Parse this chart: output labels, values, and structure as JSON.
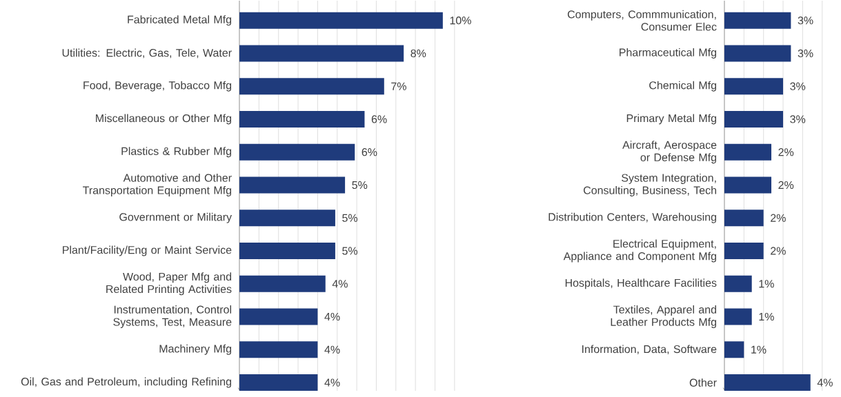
{
  "chart_data": [
    {
      "type": "bar",
      "orientation": "horizontal",
      "categories": [
        "Fabricated Metal Mfg",
        "Utilities: Electric, Gas, Tele, Water",
        "Food, Beverage, Tobacco Mfg",
        "Miscellaneous or Other Mfg",
        "Plastics & Rubber Mfg",
        "Automotive and Other Transportation Equipment Mfg",
        "Government or Military",
        "Plant/Facility/Eng or Maint Service",
        "Wood, Paper Mfg and Related Printing Activities",
        "Instrumentation, Control Systems, Test, Measure",
        "Machinery Mfg",
        "Oil, Gas and Petroleum, including Refining"
      ],
      "values": [
        10.4,
        8.4,
        7.4,
        6.4,
        5.9,
        5.4,
        4.9,
        4.9,
        4.4,
        4.0,
        4.0,
        4.0
      ],
      "value_labels": [
        "10%",
        "8%",
        "7%",
        "6%",
        "6%",
        "5%",
        "5%",
        "5%",
        "4%",
        "4%",
        "4%",
        "4%"
      ],
      "color": "#1f3b7c",
      "grid": "x",
      "tick_labels": "y"
    },
    {
      "type": "bar",
      "orientation": "horizontal",
      "categories": [
        "Computers, Commmunication, Consumer Elec",
        "Pharmaceutical Mfg",
        "Chemical Mfg",
        "Primary Metal Mfg",
        "Aircraft, Aerospace or Defense Mfg",
        "System Integration, Consulting, Business, Tech",
        "Distribution Centers, Warehousing",
        "Electrical Equipment, Appliance and Component Mfg",
        "Hospitals, Healthcare Facilities",
        "Textiles, Apparel and Leather Products Mfg",
        "Information, Data, Software",
        "Other"
      ],
      "values": [
        3.4,
        3.4,
        3.0,
        3.0,
        2.4,
        2.4,
        2.0,
        2.0,
        1.4,
        1.4,
        1.0,
        4.4
      ],
      "value_labels": [
        "3%",
        "3%",
        "3%",
        "3%",
        "2%",
        "2%",
        "2%",
        "2%",
        "1%",
        "1%",
        "1%",
        "4%"
      ],
      "color": "#1f3b7c",
      "grid": "x",
      "tick_labels": "y"
    }
  ]
}
